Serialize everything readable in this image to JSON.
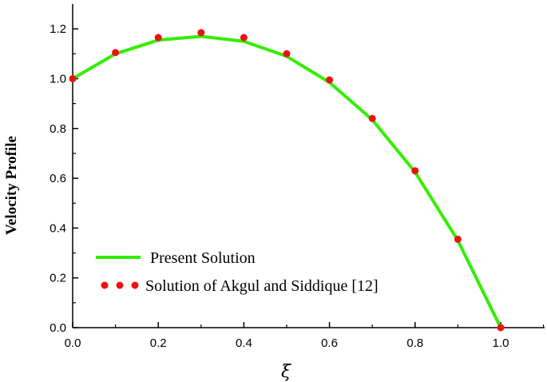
{
  "chart_data": {
    "type": "line",
    "title": "",
    "xlabel": "ξ",
    "ylabel": "Velocity Profile",
    "xlim": [
      0.0,
      1.0
    ],
    "ylim": [
      0.0,
      1.3
    ],
    "xticks": [
      "0.0",
      "0.2",
      "0.4",
      "0.6",
      "0.8",
      "1.0"
    ],
    "yticks": [
      "0.0",
      "0.2",
      "0.4",
      "0.6",
      "0.8",
      "1.0",
      "1.2"
    ],
    "grid": false,
    "legend_position": "bottom-left",
    "series": [
      {
        "name": "Present Solution",
        "style": "line",
        "color": "#33ee00",
        "x": [
          0.0,
          0.1,
          0.2,
          0.3,
          0.4,
          0.5,
          0.6,
          0.7,
          0.8,
          0.9,
          1.0
        ],
        "y": [
          1.0,
          1.1,
          1.155,
          1.17,
          1.15,
          1.09,
          0.985,
          0.835,
          0.625,
          0.35,
          0.0
        ]
      },
      {
        "name": "Solution of Akgul and Siddique [12]",
        "style": "markers",
        "color": "#ee1111",
        "x": [
          0.0,
          0.1,
          0.2,
          0.3,
          0.4,
          0.5,
          0.6,
          0.7,
          0.8,
          0.9,
          1.0
        ],
        "y": [
          1.0,
          1.105,
          1.165,
          1.185,
          1.165,
          1.1,
          0.995,
          0.84,
          0.63,
          0.355,
          0.0
        ]
      }
    ]
  }
}
